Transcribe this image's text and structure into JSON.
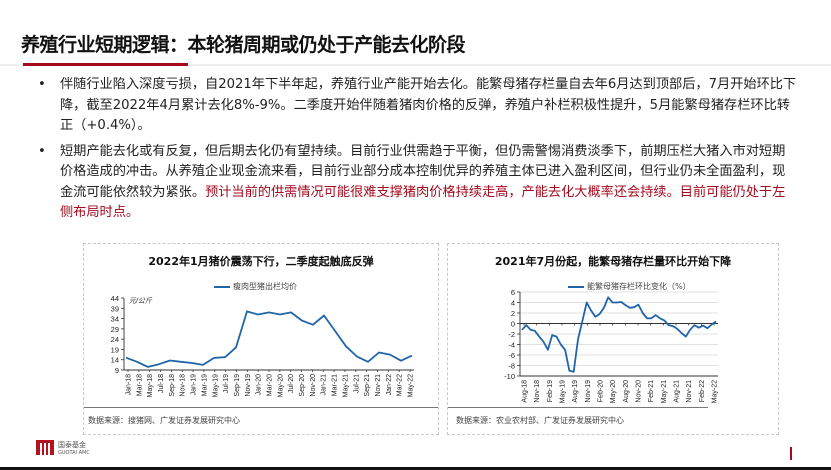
{
  "header": {
    "title": "养殖行业短期逻辑：本轮猪周期或仍处于产能去化阶段",
    "accent_color": "#a50a1e"
  },
  "bullets": [
    {
      "marker": "•",
      "text": "伴随行业陷入深度亏损，自2021年下半年起，养殖行业产能开始去化。能繁母猪存栏量自去年6月达到顶部后，7月开始环比下降，截至2022年4月累计去化8%-9%。二季度开始伴随着猪肉价格的反弹，养殖户补栏积极性提升，5月能繁母猪存栏环比转正（+0.4%）。",
      "highlight": ""
    },
    {
      "marker": "•",
      "text": "短期产能去化或有反复，但后期去化仍有望持续。目前行业供需趋于平衡，但仍需警惕消费淡季下，前期压栏大猪入市对短期价格造成的冲击。从养殖企业现金流来看，目前行业部分成本控制优异的养殖主体已进入盈利区间，但行业仍未全面盈利，现金流可能依然较为紧张。",
      "highlight": "预计当前的供需情况可能很难支撑猪肉价格持续走高，产能去化大概率还会持续。目前可能仍处于左侧布局时点。"
    }
  ],
  "chart_data": [
    {
      "type": "line",
      "title": "2022年1月猪价震荡下行，二季度起触底反弹",
      "unit_label": "元/公斤",
      "xlabel": "",
      "ylabel": "元/公斤",
      "ylim": [
        9,
        44
      ],
      "yticks": [
        9,
        14,
        19,
        24,
        29,
        34,
        39,
        44
      ],
      "grid": false,
      "legend_position": "top",
      "categories": [
        "Jan-18",
        "Mar-18",
        "May-18",
        "Jul-18",
        "Sep-18",
        "Nov-18",
        "Jan-19",
        "Mar-19",
        "May-19",
        "Jul-19",
        "Sep-19",
        "Nov-19",
        "Jan-20",
        "Mar-20",
        "May-20",
        "Jul-20",
        "Sep-20",
        "Nov-20",
        "Jan-21",
        "Mar-21",
        "May-21",
        "Jul-21",
        "Sep-21",
        "Nov-21",
        "Jan-22",
        "Mar-22",
        "May-22"
      ],
      "series": [
        {
          "name": "瘦肉型猪出栏均价",
          "color": "#2165a9",
          "values": [
            15.0,
            13.0,
            10.5,
            11.8,
            13.6,
            13.0,
            12.4,
            11.5,
            14.9,
            15.2,
            20.0,
            37.5,
            36.0,
            37.0,
            36.0,
            37.0,
            33.0,
            31.0,
            35.5,
            28.0,
            20.5,
            15.5,
            13.0,
            17.5,
            16.5,
            13.5,
            16.0
          ]
        }
      ],
      "source": "数据来源：搜猪网、广发证券发展研究中心"
    },
    {
      "type": "line",
      "title": "2021年7月份起，能繁母猪存栏量环比开始下降",
      "xlabel": "",
      "ylabel": "%",
      "ylim": [
        -10,
        6
      ],
      "yticks": [
        -10,
        -8,
        -6,
        -4,
        -2,
        0,
        2,
        4,
        6
      ],
      "grid": true,
      "legend_position": "top",
      "categories": [
        "Aug-18",
        "Nov-18",
        "Feb-19",
        "May-19",
        "Aug-19",
        "Nov-19",
        "Feb-20",
        "May-20",
        "Aug-20",
        "Nov-20",
        "Feb-21",
        "May-21",
        "Aug-21",
        "Nov-21",
        "Feb-22",
        "May-22"
      ],
      "series": [
        {
          "name": "能繁母猪存栏环比变化（%）",
          "color": "#2165a9",
          "values": [
            -1.2,
            -0.3,
            -1.2,
            -1.4,
            -2.5,
            -3.5,
            -5.0,
            -2.2,
            -2.5,
            -4.0,
            -5.0,
            -9.0,
            -9.2,
            -3.0,
            0.5,
            4.0,
            2.5,
            1.3,
            1.8,
            3.0,
            5.0,
            4.0,
            4.0,
            4.1,
            3.5,
            3.0,
            3.1,
            3.6,
            2.0,
            1.0,
            1.0,
            1.6,
            1.0,
            0.6,
            -0.3,
            -0.5,
            -1.0,
            -1.8,
            -2.5,
            -1.2,
            -0.3,
            -0.8,
            -0.4,
            -0.9,
            -0.2,
            0.4
          ]
        }
      ],
      "source": "数据来源：农业农村部、广发证券发展研究中心"
    }
  ],
  "footer": {
    "logo_cn": "国泰基金",
    "logo_en": "GUOTAI AMC",
    "logo_sub": "GROUP"
  }
}
